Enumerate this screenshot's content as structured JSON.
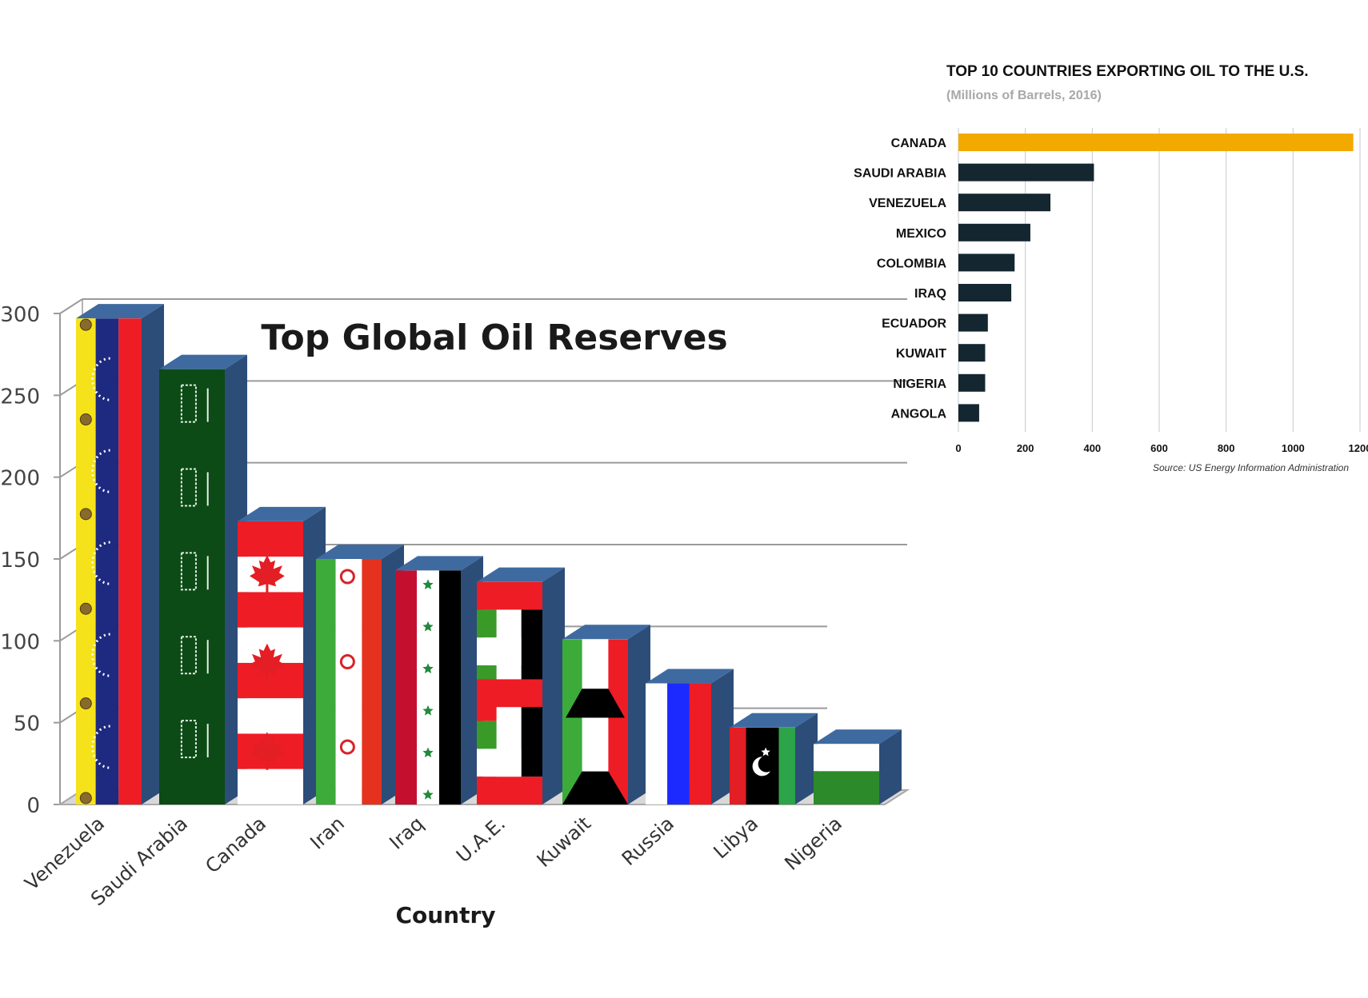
{
  "chart_data": [
    {
      "type": "bar",
      "title": "Top Global Oil Reserves",
      "xlabel": "Country",
      "ylabel": "",
      "categories": [
        "Venezuela",
        "Saudi Arabia",
        "Canada",
        "Iran",
        "Iraq",
        "U.A.E.",
        "Kuwait",
        "Russia",
        "Libya",
        "Nigeria"
      ],
      "values": [
        297,
        266,
        173,
        150,
        143,
        136,
        101,
        74,
        47,
        37
      ],
      "ylim": [
        0,
        300
      ],
      "yticks": [
        "0",
        "50",
        "100",
        "150",
        "200",
        "250",
        "300"
      ],
      "grid": true,
      "bar_style": "3D bars filled with national flags",
      "colors": {
        "bar_top": "#3f6aa0",
        "bar_side": "#2c4d78",
        "grid": "#9a9a9a",
        "floor": "#a9a9a9"
      }
    },
    {
      "type": "bar",
      "orientation": "horizontal",
      "title": "TOP 10 COUNTRIES EXPORTING OIL TO THE U.S.",
      "subtitle": "(Millions of Barrels, 2016)",
      "xlabel": "",
      "ylabel": "",
      "categories": [
        "CANADA",
        "SAUDI ARABIA",
        "VENEZUELA",
        "MEXICO",
        "COLOMBIA",
        "IRAQ",
        "ECUADOR",
        "KUWAIT",
        "NIGERIA",
        "ANGOLA"
      ],
      "values": [
        1180,
        405,
        275,
        215,
        168,
        158,
        88,
        80,
        80,
        62
      ],
      "xlim": [
        0,
        1200
      ],
      "xticks": [
        "0",
        "200",
        "400",
        "600",
        "800",
        "1000",
        "1200"
      ],
      "grid": true,
      "source": "Source: US Energy Information Administration",
      "colors": {
        "highlight": "#f2a900",
        "bar": "#142630",
        "grid": "#c8c8c8"
      }
    }
  ]
}
